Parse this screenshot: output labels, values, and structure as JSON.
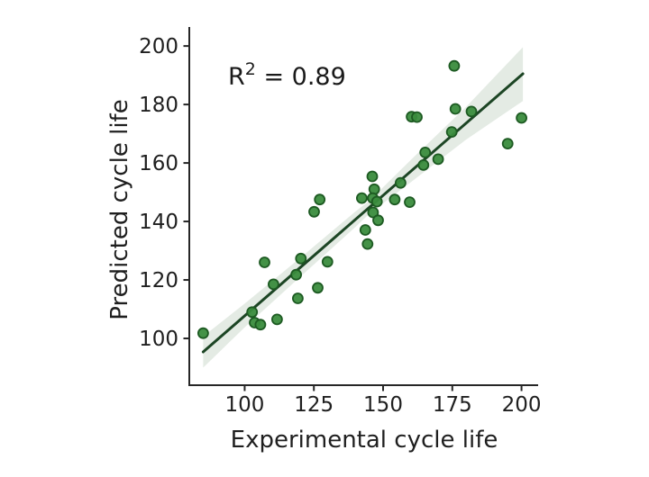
{
  "figure": {
    "background": "#ffffff"
  },
  "chart_data": {
    "type": "scatter",
    "title": "",
    "xlabel": "Experimental cycle life",
    "ylabel": "Predicted cycle life",
    "annotation": {
      "base": "R",
      "sup": "2",
      "rest": " = 0.89"
    },
    "x_ticks": [
      100,
      125,
      150,
      175,
      200
    ],
    "y_ticks": [
      100,
      120,
      140,
      160,
      180,
      200
    ],
    "xlim": [
      80,
      206
    ],
    "ylim": [
      84,
      206.5
    ],
    "grid": false,
    "legend": "none",
    "points": [
      [
        85,
        101.8
      ],
      [
        102.7,
        109
      ],
      [
        103.6,
        105.4
      ],
      [
        105.7,
        104.7
      ],
      [
        107.2,
        126
      ],
      [
        110.4,
        118.5
      ],
      [
        111.7,
        106.5
      ],
      [
        118.6,
        121.8
      ],
      [
        119.2,
        113.7
      ],
      [
        120.3,
        127.3
      ],
      [
        126.4,
        117.3
      ],
      [
        129.9,
        126.2
      ],
      [
        125.1,
        143.3
      ],
      [
        127.1,
        147.5
      ],
      [
        142.3,
        148
      ],
      [
        143.6,
        137.1
      ],
      [
        144.4,
        132.3
      ],
      [
        146.1,
        155.4
      ],
      [
        146.8,
        151
      ],
      [
        146.3,
        148
      ],
      [
        147.8,
        146.8
      ],
      [
        146.4,
        143.1
      ],
      [
        148.2,
        140.4
      ],
      [
        154.2,
        147.5
      ],
      [
        156.3,
        153.2
      ],
      [
        159.6,
        146.6
      ],
      [
        160.3,
        175.8
      ],
      [
        162.2,
        175.7
      ],
      [
        164.6,
        159.3
      ],
      [
        165.2,
        163.6
      ],
      [
        169.9,
        161.3
      ],
      [
        174.8,
        170.6
      ],
      [
        175.7,
        193.2
      ],
      [
        176.1,
        178.5
      ],
      [
        181.9,
        177.6
      ],
      [
        195,
        166.6
      ],
      [
        200,
        175.4
      ]
    ],
    "regression_line": {
      "x": [
        85,
        200.5
      ],
      "y": [
        95.4,
        190.5
      ]
    },
    "confidence_band": {
      "x": [
        85,
        100,
        120,
        140,
        145,
        160,
        180,
        200.5
      ],
      "lower": [
        90,
        103.8,
        121,
        138.1,
        142.6,
        153.4,
        168,
        181.2
      ],
      "upper": [
        100.7,
        111.9,
        127.5,
        143.4,
        147,
        161,
        179.2,
        199.6
      ]
    },
    "marker": {
      "shape": "circle",
      "radius_px": 5.5
    },
    "colors": {
      "marker_fill": "#3a8c3d",
      "marker_edge": "#1d5a22",
      "regression_line": "#1c4524",
      "confidence_band": "rgba(85,130,85,0.16)",
      "axis": "#262626",
      "text": "#1f1f1f"
    }
  }
}
